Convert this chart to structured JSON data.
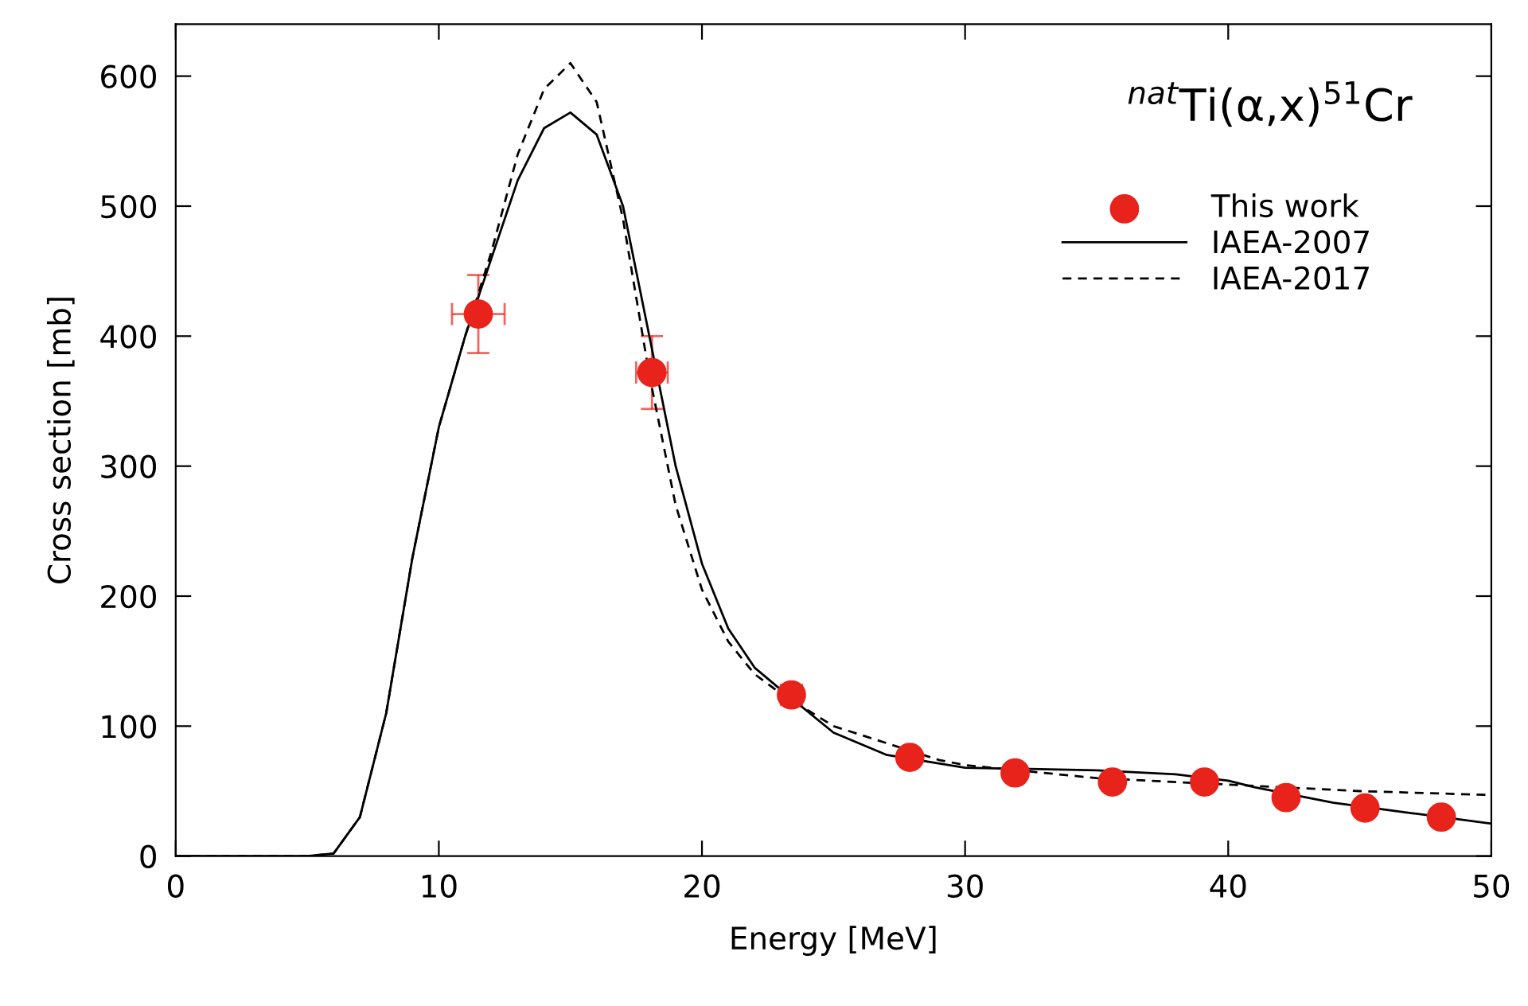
{
  "chart_data": {
    "type": "line",
    "title": "$^{nat}$Ti(α,x)$^{51}$Cr",
    "xlabel": "Energy [MeV]",
    "ylabel": "Cross section [mb]",
    "xlim": [
      0,
      50
    ],
    "ylim": [
      0,
      640
    ],
    "xticks": [
      0,
      10,
      20,
      30,
      40,
      50
    ],
    "yticks": [
      0,
      100,
      200,
      300,
      400,
      500,
      600
    ],
    "grid": false,
    "legend": "top right",
    "series": [
      {
        "name": "This work",
        "type": "scatter",
        "color": "#e8231b",
        "marker": "circle",
        "x": [
          11.5,
          18.1,
          23.4,
          27.9,
          31.9,
          35.6,
          39.1,
          42.2,
          45.2,
          48.1
        ],
        "values": [
          417,
          372,
          124,
          76,
          64,
          57,
          57,
          45,
          37,
          30
        ],
        "errors": [
          30,
          28,
          7,
          null,
          null,
          null,
          null,
          null,
          null,
          null
        ],
        "xerrors": [
          1,
          0.6,
          0.4,
          null,
          null,
          null,
          null,
          null,
          null,
          null
        ]
      },
      {
        "name": "IAEA-2007",
        "color": "#000000",
        "line_style": "solid",
        "x": [
          0,
          5,
          6,
          7,
          8,
          9,
          10,
          11,
          12,
          13,
          14,
          15,
          16,
          17,
          18,
          19,
          20,
          21,
          22,
          23,
          25,
          27,
          30,
          35,
          38,
          40,
          41,
          44,
          47,
          50
        ],
        "values": [
          0,
          0,
          2,
          30,
          110,
          230,
          330,
          400,
          460,
          520,
          560,
          572,
          555,
          500,
          400,
          300,
          225,
          175,
          145,
          128,
          95,
          78,
          68,
          66,
          63,
          58,
          53,
          41,
          33,
          25
        ]
      },
      {
        "name": "IAEA-2017",
        "color": "#000000",
        "line_style": "dashed",
        "x": [
          0,
          5,
          6,
          7,
          8,
          9,
          10,
          11,
          12,
          13,
          14,
          15,
          16,
          17,
          18,
          19,
          20,
          21,
          22,
          23,
          25,
          29,
          30,
          35,
          40,
          45,
          50
        ],
        "values": [
          0,
          0,
          2,
          30,
          110,
          230,
          330,
          400,
          465,
          540,
          590,
          610,
          580,
          490,
          370,
          270,
          205,
          165,
          140,
          125,
          100,
          74,
          70,
          60,
          55,
          50,
          47
        ]
      }
    ]
  }
}
